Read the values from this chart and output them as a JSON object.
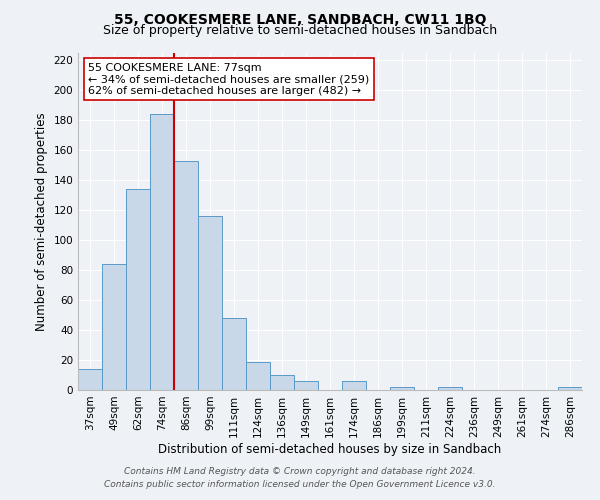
{
  "title": "55, COOKESMERE LANE, SANDBACH, CW11 1BQ",
  "subtitle": "Size of property relative to semi-detached houses in Sandbach",
  "xlabel": "Distribution of semi-detached houses by size in Sandbach",
  "ylabel": "Number of semi-detached properties",
  "bin_labels": [
    "37sqm",
    "49sqm",
    "62sqm",
    "74sqm",
    "86sqm",
    "99sqm",
    "111sqm",
    "124sqm",
    "136sqm",
    "149sqm",
    "161sqm",
    "174sqm",
    "186sqm",
    "199sqm",
    "211sqm",
    "224sqm",
    "236sqm",
    "249sqm",
    "261sqm",
    "274sqm",
    "286sqm"
  ],
  "bar_heights": [
    14,
    84,
    134,
    184,
    153,
    116,
    48,
    19,
    10,
    6,
    0,
    6,
    0,
    2,
    0,
    2,
    0,
    0,
    0,
    0,
    2
  ],
  "bar_color": "#c8d8e8",
  "bar_edge_color": "#5a9ac8",
  "vline_x": 3.5,
  "vline_color": "#cc0000",
  "annotation_title": "55 COOKESMERE LANE: 77sqm",
  "annotation_line1": "← 34% of semi-detached houses are smaller (259)",
  "annotation_line2": "62% of semi-detached houses are larger (482) →",
  "annotation_box_color": "#ffffff",
  "annotation_box_edge_color": "#cc0000",
  "ylim": [
    0,
    225
  ],
  "yticks": [
    0,
    20,
    40,
    60,
    80,
    100,
    120,
    140,
    160,
    180,
    200,
    220
  ],
  "footnote1": "Contains HM Land Registry data © Crown copyright and database right 2024.",
  "footnote2": "Contains public sector information licensed under the Open Government Licence v3.0.",
  "background_color": "#eef2f7",
  "grid_color": "#ffffff",
  "title_fontsize": 10,
  "subtitle_fontsize": 9,
  "axis_label_fontsize": 8.5,
  "tick_fontsize": 7.5,
  "annotation_fontsize": 8,
  "footnote_fontsize": 6.5
}
